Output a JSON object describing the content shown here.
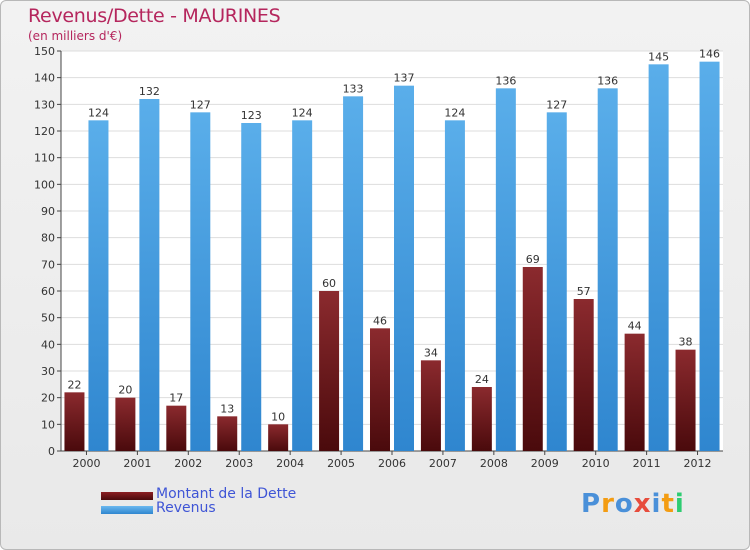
{
  "title": "Revenus/Dette - MAURINES",
  "subtitle": "(en milliers d'€)",
  "colors": {
    "title": "#b5265d",
    "legend_text": "#3f55d6",
    "dette": "#8b1e22",
    "revenus": "#4aa3e6"
  },
  "chart_data": {
    "type": "bar",
    "title": "Revenus/Dette - MAURINES",
    "ylabel": "(en milliers d'€)",
    "xlabel": "",
    "ylim": [
      0,
      150
    ],
    "yticks": [
      0,
      10,
      20,
      30,
      40,
      50,
      60,
      70,
      80,
      90,
      100,
      110,
      120,
      130,
      140,
      150
    ],
    "grid": true,
    "legend_position": "bottom-left",
    "categories": [
      "2000",
      "2001",
      "2002",
      "2003",
      "2004",
      "2005",
      "2006",
      "2007",
      "2008",
      "2009",
      "2010",
      "2011",
      "2012"
    ],
    "series": [
      {
        "name": "Montant de la Dette",
        "color": "#8b1e22",
        "values": [
          22,
          20,
          17,
          13,
          10,
          60,
          46,
          34,
          24,
          69,
          57,
          44,
          38
        ]
      },
      {
        "name": "Revenus",
        "color": "#4aa3e6",
        "values": [
          124,
          132,
          127,
          123,
          124,
          133,
          137,
          124,
          136,
          127,
          136,
          145,
          146
        ]
      }
    ]
  },
  "legend": [
    {
      "label": "Montant de la Dette",
      "color": "#8b1e22"
    },
    {
      "label": "Revenus",
      "color": "#4aa3e6"
    }
  ],
  "logo": {
    "text": "Proxiti",
    "letter_colors": [
      "#4a90d9",
      "#f39c12",
      "#4a90d9",
      "#e74c3c",
      "#4a90d9",
      "#f39c12",
      "#2ecc71"
    ]
  }
}
